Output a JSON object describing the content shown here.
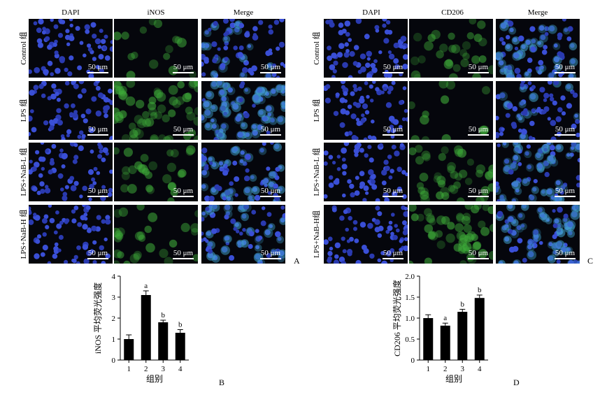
{
  "figure_A": {
    "letter": "A",
    "columns": [
      "DAPI",
      "iNOS",
      "Merge"
    ],
    "rows": [
      "Control 组",
      "LPS 组",
      "LPS+NaB-L 组",
      "LPS+NaB-H 组"
    ],
    "scale_bar": "50 μm"
  },
  "figure_C": {
    "letter": "C",
    "columns": [
      "DAPI",
      "CD206",
      "Merge"
    ],
    "rows": [
      "Control 组",
      "LPS 组",
      "LPS+NaB-L 组",
      "LPS+NaB-H组"
    ],
    "scale_bar": "50 μm"
  },
  "colors": {
    "nucleus": "#3a4fd6",
    "nucleus_dim": "#2a3ab0",
    "fluor_green": "#3fae3a",
    "merge_cyan": "#3f9fc8",
    "background": "#05060c"
  },
  "chart_data": [
    {
      "letter": "B",
      "type": "bar",
      "categories": [
        "1",
        "2",
        "3",
        "4"
      ],
      "values": [
        1.0,
        3.1,
        1.8,
        1.3
      ],
      "errors": [
        0.2,
        0.2,
        0.1,
        0.15
      ],
      "annotations": [
        "",
        "a",
        "b",
        "b"
      ],
      "xlabel": "组别",
      "ylabel": "iNOS 平均荧光强度",
      "ylim": [
        0,
        4
      ],
      "yticks": [
        "0",
        "1",
        "2",
        "3",
        "4"
      ],
      "bar_color": "#000000"
    },
    {
      "letter": "D",
      "type": "bar",
      "categories": [
        "1",
        "2",
        "3",
        "4"
      ],
      "values": [
        1.0,
        0.82,
        1.15,
        1.48
      ],
      "errors": [
        0.08,
        0.06,
        0.06,
        0.07
      ],
      "annotations": [
        "",
        "a",
        "b",
        "b"
      ],
      "xlabel": "组别",
      "ylabel": "CD206 平均荧光强度",
      "ylim": [
        0,
        2.0
      ],
      "yticks": [
        "0",
        "0.5",
        "1.0",
        "1.5",
        "2.0"
      ],
      "bar_color": "#000000"
    }
  ]
}
